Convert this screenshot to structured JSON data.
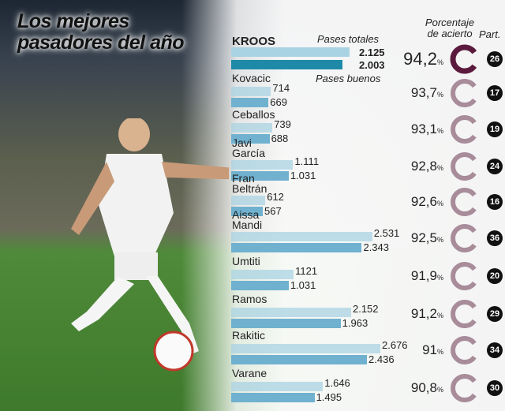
{
  "title": "Los mejores pasadores del año",
  "headers": {
    "total": "Pases totales",
    "good": "Pases buenos",
    "pct": "Porcentaje de acierto",
    "part": "Part."
  },
  "colors": {
    "total_bar": "#a9d3e3",
    "good_bar": "#6fb1cf",
    "lead_total_bar": "#a9d3e3",
    "lead_good_bar": "#1e8aa8",
    "lead_donut": "#5b1a3d",
    "donut": "#a88c9a",
    "badge": "#111111"
  },
  "chart_data": {
    "type": "bar",
    "title": "Los mejores pasadores del año",
    "categories": [
      "KROOS",
      "Kovacic",
      "Ceballos",
      "Javi García",
      "Fran Beltrán",
      "Aissa Mandi",
      "Umtiti",
      "Ramos",
      "Rakitic",
      "Varane"
    ],
    "series": [
      {
        "name": "Pases totales",
        "values": [
          2125,
          714,
          739,
          1111,
          612,
          2531,
          1121,
          2152,
          2676,
          1646
        ],
        "labels": [
          "2.125",
          "714",
          "739",
          "1.111",
          "612",
          "2.531",
          "1121",
          "2.152",
          "2.676",
          "1.646"
        ]
      },
      {
        "name": "Pases buenos",
        "values": [
          2003,
          669,
          688,
          1031,
          567,
          2343,
          1031,
          1963,
          2436,
          1495
        ],
        "labels": [
          "2.003",
          "669",
          "688",
          "1.031",
          "567",
          "2.343",
          "1.031",
          "1.963",
          "2.436",
          "1.495"
        ]
      },
      {
        "name": "Porcentaje de acierto",
        "values": [
          94.2,
          93.7,
          93.1,
          92.8,
          92.6,
          92.5,
          91.9,
          91.2,
          91,
          90.8
        ],
        "labels": [
          "94,2",
          "93,7",
          "93,1",
          "92,8",
          "92,6",
          "92,5",
          "91,9",
          "91,2",
          "91",
          "90,8"
        ],
        "unit": "%"
      },
      {
        "name": "Part.",
        "values": [
          26,
          17,
          19,
          24,
          16,
          36,
          20,
          29,
          34,
          30
        ]
      }
    ]
  }
}
